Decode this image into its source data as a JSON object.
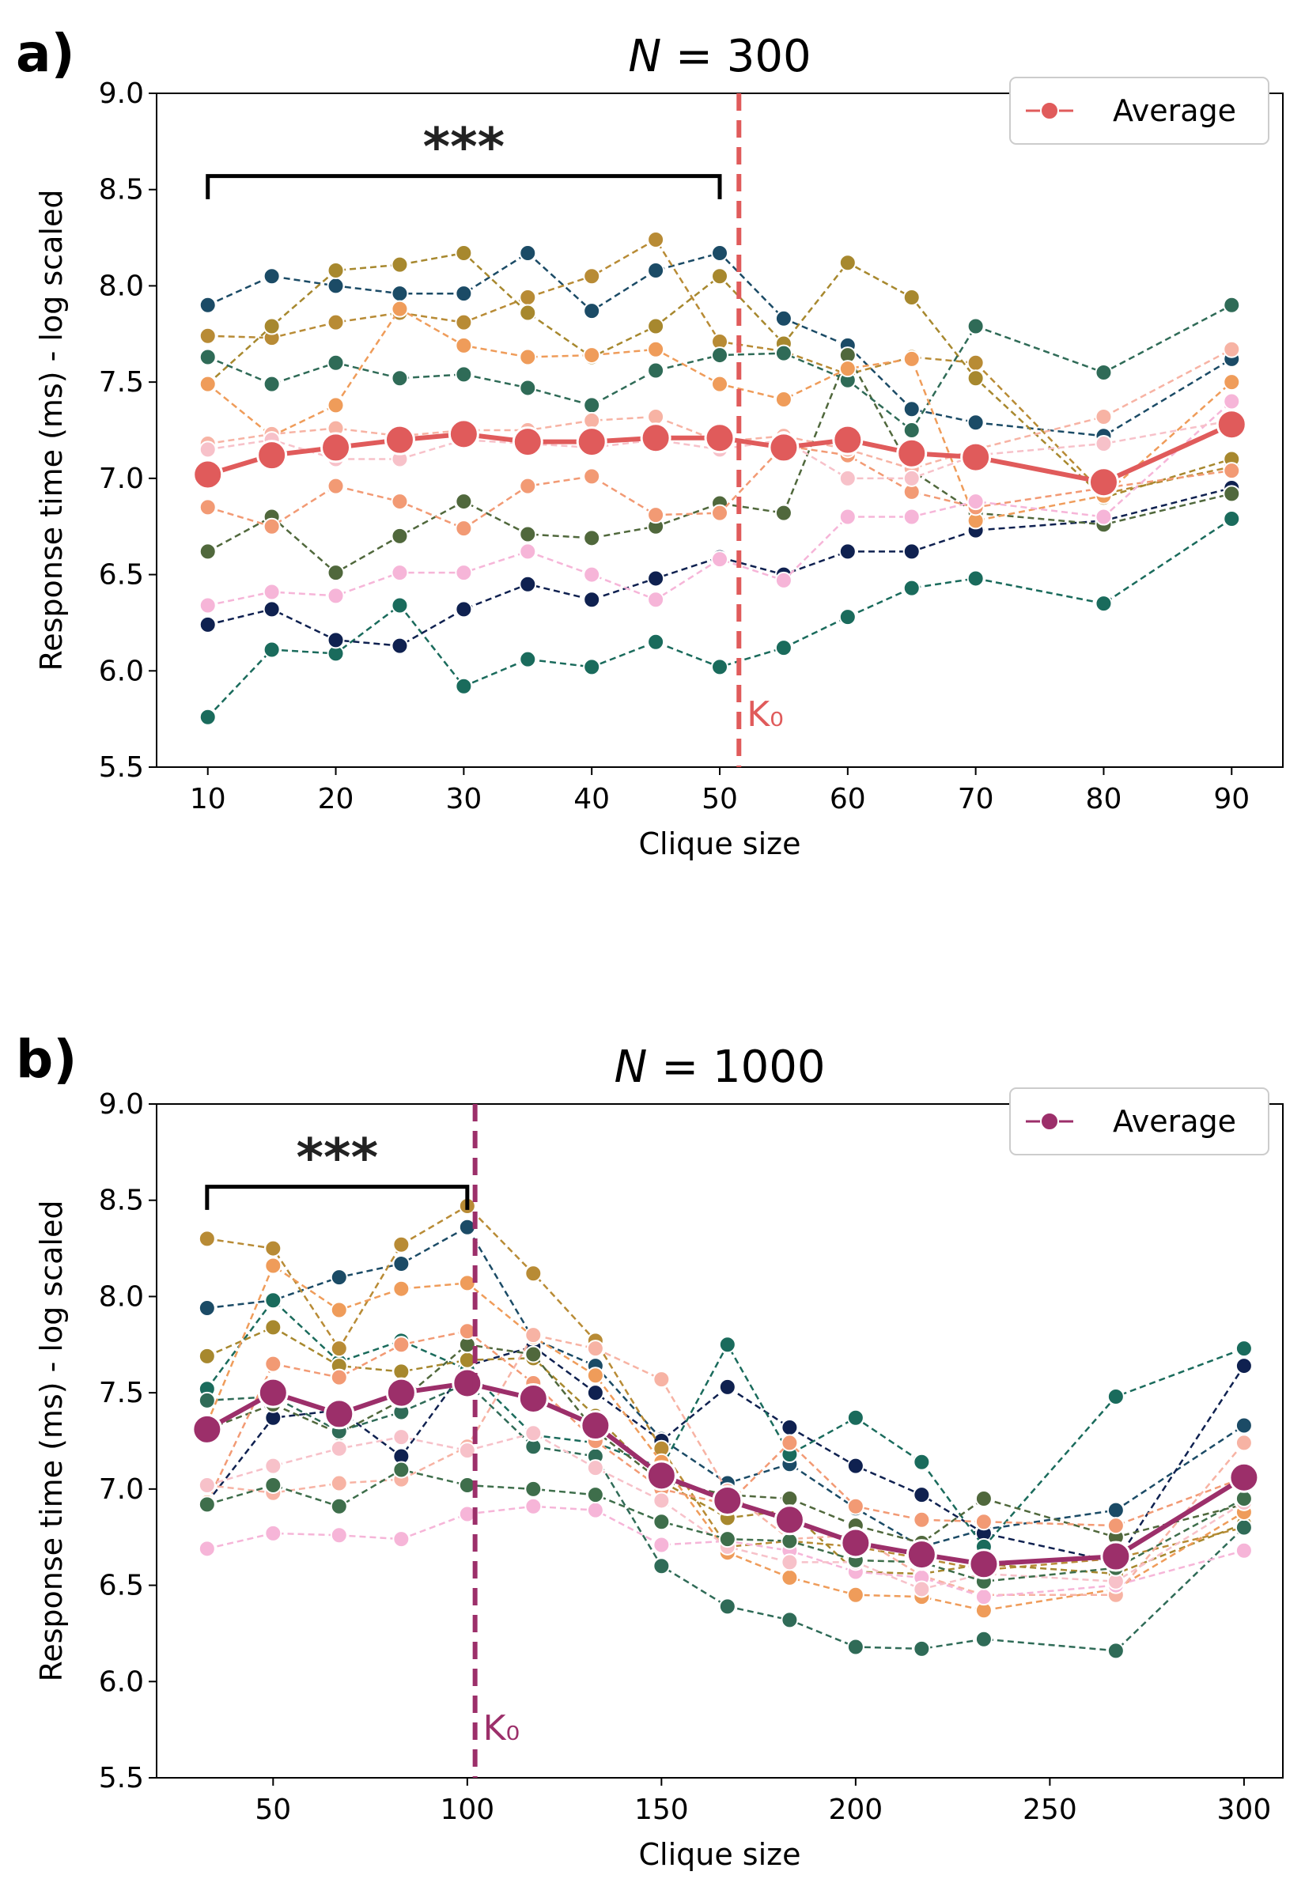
{
  "chart_data": [
    {
      "panel_label": "a)",
      "type": "line",
      "title": "N = 300",
      "xlabel": "Clique size",
      "ylabel": "Response time (ms) - log scaled",
      "xlim": [
        6,
        94
      ],
      "ylim": [
        5.5,
        9.0
      ],
      "xticks": [
        10,
        20,
        30,
        40,
        50,
        60,
        70,
        80,
        90
      ],
      "yticks": [
        5.5,
        6.0,
        6.5,
        7.0,
        7.5,
        8.0,
        8.5,
        9.0
      ],
      "grid": false,
      "legend": {
        "position": "top-right",
        "label": "Average"
      },
      "accent_color": "#e05b5b",
      "significance": {
        "text": "***",
        "x_from": 10,
        "x_to": 50
      },
      "threshold": {
        "label": "K₀",
        "x": 51.5
      },
      "x": [
        10,
        15,
        20,
        25,
        30,
        35,
        40,
        45,
        50,
        55,
        60,
        65,
        70,
        80,
        90
      ],
      "average": [
        7.02,
        7.12,
        7.16,
        7.2,
        7.23,
        7.19,
        7.19,
        7.21,
        7.21,
        7.16,
        7.2,
        7.13,
        7.11,
        6.98,
        7.28
      ],
      "series": [
        {
          "color": "#1b4b66",
          "values": [
            7.9,
            8.05,
            8.0,
            7.96,
            7.96,
            8.17,
            7.87,
            8.08,
            8.17,
            7.83,
            7.69,
            7.36,
            7.29,
            7.22,
            7.62
          ]
        },
        {
          "color": "#1a6b5c",
          "values": [
            5.76,
            6.11,
            6.09,
            6.34,
            5.92,
            6.06,
            6.02,
            6.15,
            6.02,
            6.12,
            6.28,
            6.43,
            6.48,
            6.35,
            6.79
          ]
        },
        {
          "color": "#0f2150",
          "values": [
            6.24,
            6.32,
            6.16,
            6.13,
            6.32,
            6.45,
            6.37,
            6.48,
            6.59,
            6.5,
            6.62,
            6.62,
            6.73,
            6.78,
            6.95
          ]
        },
        {
          "color": "#b88b35",
          "values": [
            7.74,
            7.73,
            7.81,
            7.86,
            7.81,
            7.94,
            8.05,
            8.24,
            7.71,
            7.66,
            7.54,
            7.63,
            7.6,
            6.92,
            7.06
          ]
        },
        {
          "color": "#a7882e",
          "values": [
            7.49,
            7.79,
            8.08,
            8.11,
            8.17,
            7.86,
            7.63,
            7.79,
            8.05,
            7.7,
            8.12,
            7.94,
            7.52,
            6.9,
            7.1
          ]
        },
        {
          "color": "#50683c",
          "values": [
            6.62,
            6.8,
            6.51,
            6.7,
            6.88,
            6.71,
            6.69,
            6.75,
            6.87,
            6.82,
            7.64,
            7.04,
            6.82,
            6.76,
            6.92
          ]
        },
        {
          "color": "#2f6b57",
          "values": [
            7.63,
            7.49,
            7.6,
            7.52,
            7.54,
            7.47,
            7.38,
            7.56,
            7.64,
            7.65,
            7.51,
            7.25,
            7.79,
            7.55,
            7.9
          ]
        },
        {
          "color": "#ef9c5a",
          "values": [
            7.49,
            7.22,
            7.38,
            7.88,
            7.69,
            7.63,
            7.64,
            7.67,
            7.49,
            7.41,
            7.57,
            7.62,
            6.78,
            6.91,
            7.5
          ]
        },
        {
          "color": "#f29a74",
          "values": [
            6.85,
            6.75,
            6.96,
            6.88,
            6.74,
            6.96,
            7.01,
            6.81,
            6.82,
            7.17,
            7.12,
            6.93,
            6.85,
            6.95,
            7.04
          ]
        },
        {
          "color": "#f7b3a4",
          "values": [
            7.18,
            7.23,
            7.26,
            7.22,
            7.25,
            7.25,
            7.3,
            7.32,
            7.19,
            7.22,
            7.15,
            7.05,
            7.15,
            7.32,
            7.67
          ]
        },
        {
          "color": "#f6b5d8",
          "values": [
            6.34,
            6.41,
            6.39,
            6.51,
            6.51,
            6.62,
            6.5,
            6.37,
            6.58,
            6.47,
            6.8,
            6.8,
            6.88,
            6.8,
            7.4
          ]
        },
        {
          "color": "#f7c1c9",
          "values": [
            7.15,
            7.2,
            7.1,
            7.1,
            7.2,
            7.18,
            7.16,
            7.2,
            7.15,
            7.2,
            7.0,
            7.0,
            7.12,
            7.18,
            7.3
          ]
        }
      ]
    },
    {
      "panel_label": "b)",
      "type": "line",
      "title": "N = 1000",
      "xlabel": "Clique size",
      "ylabel": "Response time (ms) - log scaled",
      "xlim": [
        20,
        310
      ],
      "ylim": [
        5.5,
        9.0
      ],
      "xticks": [
        50,
        100,
        150,
        200,
        250,
        300
      ],
      "yticks": [
        5.5,
        6.0,
        6.5,
        7.0,
        7.5,
        8.0,
        8.5,
        9.0
      ],
      "grid": false,
      "legend": {
        "position": "top-right",
        "label": "Average"
      },
      "accent_color": "#9c2f6a",
      "significance": {
        "text": "***",
        "x_from": 33,
        "x_to": 100
      },
      "threshold": {
        "label": "K₀",
        "x": 102
      },
      "x": [
        33,
        50,
        67,
        83,
        100,
        117,
        133,
        150,
        167,
        183,
        200,
        217,
        233,
        267,
        300
      ],
      "average": [
        7.31,
        7.5,
        7.39,
        7.5,
        7.55,
        7.47,
        7.33,
        7.07,
        6.94,
        6.84,
        6.72,
        6.66,
        6.61,
        6.65,
        7.06
      ],
      "series": [
        {
          "color": "#1b4b66",
          "values": [
            7.94,
            7.98,
            8.1,
            8.17,
            8.36,
            7.78,
            7.64,
            7.26,
            7.03,
            7.13,
            6.9,
            6.7,
            6.79,
            6.89,
            7.33
          ]
        },
        {
          "color": "#0f2150",
          "values": [
            6.93,
            7.37,
            7.41,
            7.17,
            7.64,
            7.74,
            7.5,
            7.25,
            7.53,
            7.32,
            7.12,
            6.97,
            6.77,
            6.62,
            7.64
          ]
        },
        {
          "color": "#1a6b5c",
          "values": [
            7.52,
            7.98,
            7.66,
            7.77,
            7.62,
            7.28,
            7.24,
            7.11,
            7.75,
            7.18,
            7.37,
            7.14,
            6.7,
            7.48,
            7.73
          ]
        },
        {
          "color": "#b88b35",
          "values": [
            8.3,
            8.25,
            7.73,
            8.27,
            8.47,
            8.12,
            7.77,
            7.21,
            6.7,
            6.73,
            6.7,
            6.64,
            6.58,
            6.64,
            6.8
          ]
        },
        {
          "color": "#a7882e",
          "values": [
            7.69,
            7.84,
            7.64,
            7.61,
            7.67,
            7.68,
            7.38,
            7.04,
            6.85,
            6.89,
            6.57,
            6.56,
            6.61,
            6.56,
            6.82
          ]
        },
        {
          "color": "#50683c",
          "values": [
            7.31,
            7.44,
            7.29,
            7.46,
            7.75,
            7.7,
            7.3,
            7.04,
            6.97,
            6.95,
            6.81,
            6.72,
            6.95,
            6.75,
            6.92
          ]
        },
        {
          "color": "#2f6b57",
          "values": [
            7.46,
            7.48,
            7.3,
            7.4,
            7.55,
            7.22,
            7.17,
            6.6,
            6.39,
            6.32,
            6.18,
            6.17,
            6.22,
            6.16,
            6.8
          ]
        },
        {
          "color": "#ef9c5a",
          "values": [
            7.34,
            8.16,
            7.93,
            8.04,
            8.07,
            7.79,
            7.59,
            7.14,
            6.67,
            6.54,
            6.45,
            6.44,
            6.37,
            6.48,
            6.88
          ]
        },
        {
          "color": "#f29a74",
          "values": [
            6.93,
            7.65,
            7.58,
            7.75,
            7.82,
            7.55,
            7.25,
            7.0,
            6.92,
            7.24,
            6.91,
            6.84,
            6.83,
            6.81,
            7.06
          ]
        },
        {
          "color": "#f7b3a4",
          "values": [
            7.02,
            6.98,
            7.03,
            7.05,
            7.22,
            7.8,
            7.73,
            7.57,
            6.99,
            6.74,
            6.76,
            6.55,
            6.45,
            6.45,
            7.24
          ]
        },
        {
          "color": "#f6b5d8",
          "values": [
            6.69,
            6.77,
            6.76,
            6.74,
            6.87,
            6.91,
            6.89,
            6.71,
            6.73,
            6.68,
            6.57,
            6.54,
            6.44,
            6.5,
            6.68
          ]
        },
        {
          "color": "#f7c1c9",
          "values": [
            7.02,
            7.12,
            7.21,
            7.27,
            7.2,
            7.29,
            7.11,
            6.94,
            6.7,
            6.62,
            6.62,
            6.48,
            6.56,
            6.52,
            6.93
          ]
        },
        {
          "color": "#3e6e4b",
          "values": [
            6.92,
            7.02,
            6.91,
            7.1,
            7.02,
            7.0,
            6.97,
            6.83,
            6.74,
            6.73,
            6.63,
            6.62,
            6.52,
            6.59,
            6.95
          ]
        }
      ]
    }
  ]
}
